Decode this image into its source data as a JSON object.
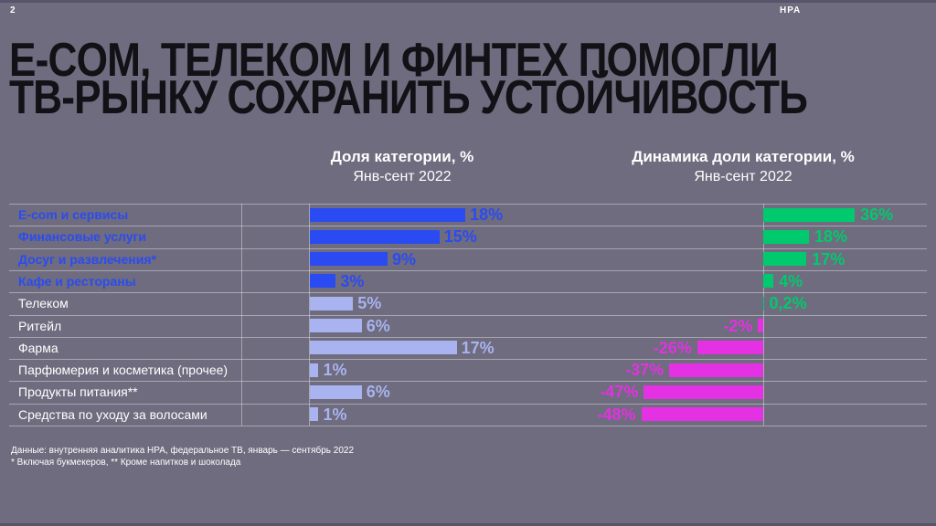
{
  "page": {
    "number": "2",
    "brand": "НРА"
  },
  "title": {
    "line1": "E-COM, ТЕЛЕКОМ И ФИНТЕХ ПОМОГЛИ",
    "line2": "ТВ-РЫНКУ СОХРАНИТЬ УСТОЙЧИВОСТЬ"
  },
  "columns": {
    "share": {
      "title": "Доля категории, %",
      "subtitle": "Янв-сент 2022"
    },
    "dynamics": {
      "title": "Динамика доли категории, %",
      "subtitle": "Янв-сент 2022"
    }
  },
  "rows": [
    {
      "label": "E-com и сервисы",
      "highlight": true,
      "share": 18,
      "share_label": "18%",
      "dynamics": 36,
      "dynamics_label": "36%"
    },
    {
      "label": "Финансовые услуги",
      "highlight": true,
      "share": 15,
      "share_label": "15%",
      "dynamics": 18,
      "dynamics_label": "18%"
    },
    {
      "label": "Досуг и развлечения*",
      "highlight": true,
      "share": 9,
      "share_label": "9%",
      "dynamics": 17,
      "dynamics_label": "17%"
    },
    {
      "label": "Кафе и рестораны",
      "highlight": true,
      "share": 3,
      "share_label": "3%",
      "dynamics": 4,
      "dynamics_label": "4%"
    },
    {
      "label": "Телеком",
      "highlight": false,
      "share": 5,
      "share_label": "5%",
      "dynamics": 0.2,
      "dynamics_label": "0,2%"
    },
    {
      "label": "Ритейл",
      "highlight": false,
      "share": 6,
      "share_label": "6%",
      "dynamics": -2,
      "dynamics_label": "-2%"
    },
    {
      "label": "Фарма",
      "highlight": false,
      "share": 17,
      "share_label": "17%",
      "dynamics": -26,
      "dynamics_label": "-26%"
    },
    {
      "label": "Парфюмерия и косметика (прочее)",
      "highlight": false,
      "share": 1,
      "share_label": "1%",
      "dynamics": -37,
      "dynamics_label": "-37%"
    },
    {
      "label": "Продукты питания**",
      "highlight": false,
      "share": 6,
      "share_label": "6%",
      "dynamics": -47,
      "dynamics_label": "-47%"
    },
    {
      "label": "Средства по уходу за волосами",
      "highlight": false,
      "share": 1,
      "share_label": "1%",
      "dynamics": -48,
      "dynamics_label": "-48%"
    }
  ],
  "footnotes": [
    "Данные: внутренняя аналитика НРА, федеральное ТВ, январь — сентябрь 2022",
    "* Включая букмекеров, ** Кроме напитков и шоколада"
  ],
  "colors": {
    "background": "#6e6c7e",
    "title_text": "#111116",
    "highlight_blue": "#2b4bf2",
    "muted_lavender": "#a9b3ef",
    "positive_green": "#00ca6d",
    "negative_magenta": "#e331e3",
    "grid_line": "#a8a6b4",
    "white": "#ffffff"
  },
  "chart_data": {
    "type": "bar",
    "orientation": "horizontal",
    "title": "E-com, телеком и финтех помогли ТВ-рынку сохранить устойчивость",
    "categories": [
      "E-com и сервисы",
      "Финансовые услуги",
      "Досуг и развлечения*",
      "Кафе и рестораны",
      "Телеком",
      "Ритейл",
      "Фарма",
      "Парфюмерия и косметика (прочее)",
      "Продукты питания**",
      "Средства по уходу за волосами"
    ],
    "series": [
      {
        "name": "Доля категории, % (Янв-сент 2022)",
        "values": [
          18,
          15,
          9,
          3,
          5,
          6,
          17,
          1,
          6,
          1
        ]
      },
      {
        "name": "Динамика доли категории, % (Янв-сент 2022)",
        "values": [
          36,
          18,
          17,
          4,
          0.2,
          -2,
          -26,
          -37,
          -47,
          -48
        ]
      }
    ],
    "share_value_range": [
      0,
      30
    ],
    "dynamics_value_range": [
      -78,
      64
    ],
    "grid": "horizontal-row-lines",
    "legend": "none",
    "data_labels": "shown-at-bar-end"
  }
}
